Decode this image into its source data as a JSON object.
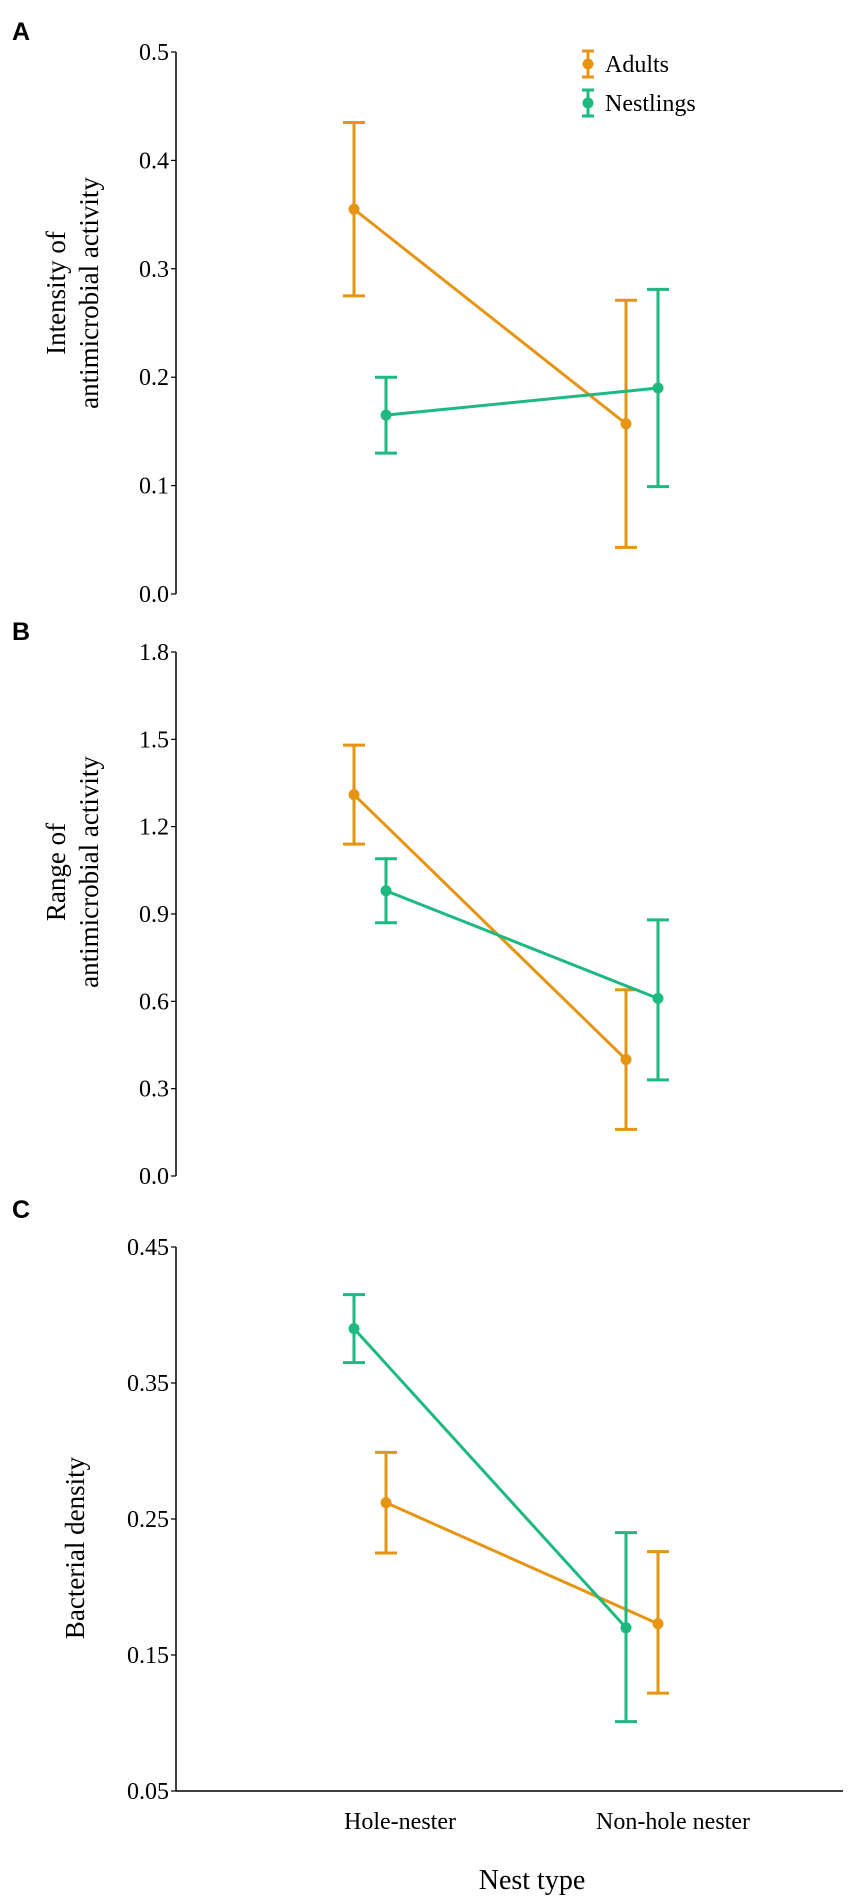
{
  "colors": {
    "adults": "#E69512",
    "nestlings": "#1DB980",
    "axis": "#000000"
  },
  "legend": [
    {
      "name": "Adults",
      "color": "#E69512"
    },
    {
      "name": "Nestlings",
      "color": "#1DB980"
    }
  ],
  "x_axis": {
    "label": "Nest type",
    "categories": [
      "Hole-nester",
      "Non-hole nester"
    ]
  },
  "chart_data": [
    {
      "panel": "A",
      "type": "line",
      "ylabel_lines": [
        "Intensity of",
        "antimicrobial activity"
      ],
      "ylim": [
        0.0,
        0.5
      ],
      "yticks": [
        "0.0",
        "0.1",
        "0.2",
        "0.3",
        "0.4",
        "0.5"
      ],
      "categories": [
        "Hole-nester",
        "Non-hole nester"
      ],
      "series": [
        {
          "name": "Adults",
          "values": [
            0.355,
            0.157
          ],
          "lower": [
            0.275,
            0.043
          ],
          "upper": [
            0.435,
            0.271
          ]
        },
        {
          "name": "Nestlings",
          "values": [
            0.165,
            0.19
          ],
          "lower": [
            0.13,
            0.099
          ],
          "upper": [
            0.2,
            0.281
          ]
        }
      ]
    },
    {
      "panel": "B",
      "type": "line",
      "ylabel_lines": [
        "Range of",
        "antimicrobial activity"
      ],
      "ylim": [
        0.0,
        1.8
      ],
      "yticks": [
        "0.0",
        "0.3",
        "0.6",
        "0.9",
        "1.2",
        "1.5",
        "1.8"
      ],
      "categories": [
        "Hole-nester",
        "Non-hole nester"
      ],
      "series": [
        {
          "name": "Adults",
          "values": [
            1.31,
            0.4
          ],
          "lower": [
            1.14,
            0.16
          ],
          "upper": [
            1.48,
            0.64
          ]
        },
        {
          "name": "Nestlings",
          "values": [
            0.98,
            0.61
          ],
          "lower": [
            0.87,
            0.33
          ],
          "upper": [
            1.09,
            0.88
          ]
        }
      ]
    },
    {
      "panel": "C",
      "type": "line",
      "ylabel_lines": [
        "Bacterial density"
      ],
      "ylim": [
        0.05,
        0.45
      ],
      "yticks": [
        "0.05",
        "0.15",
        "0.25",
        "0.35",
        "0.45"
      ],
      "categories": [
        "Hole-nester",
        "Non-hole nester"
      ],
      "series": [
        {
          "name": "Adults",
          "values": [
            0.262,
            0.173
          ],
          "lower": [
            0.225,
            0.122
          ],
          "upper": [
            0.299,
            0.226
          ]
        },
        {
          "name": "Nestlings",
          "values": [
            0.39,
            0.17
          ],
          "lower": [
            0.365,
            0.101
          ],
          "upper": [
            0.415,
            0.24
          ]
        }
      ]
    }
  ]
}
